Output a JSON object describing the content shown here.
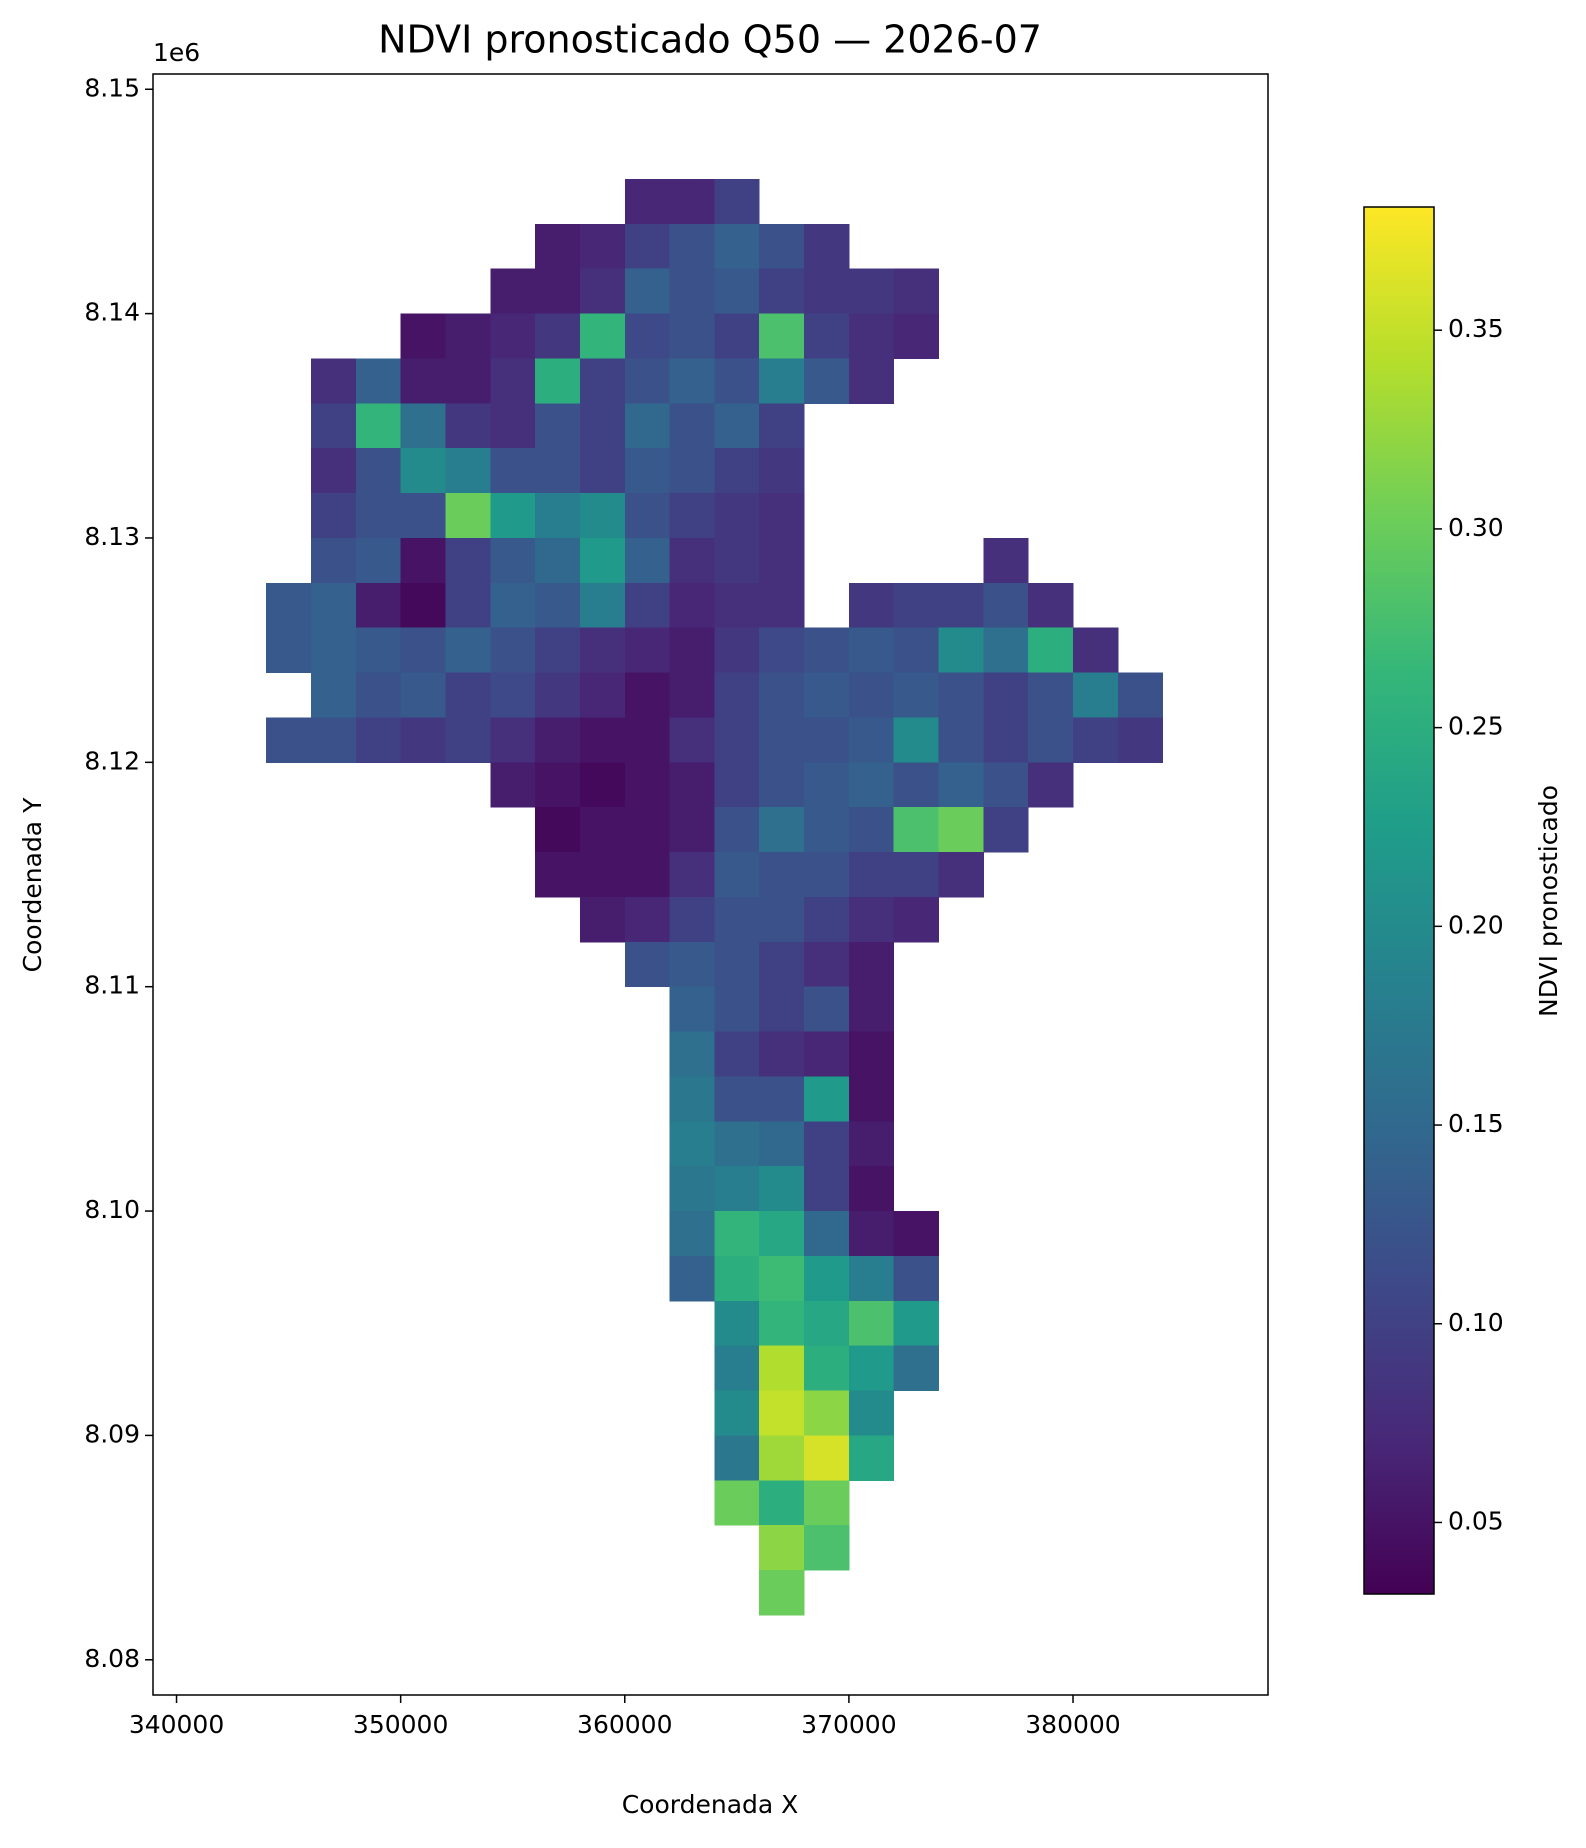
{
  "chart_data": {
    "type": "heatmap",
    "title": "NDVI pronosticado Q50 — 2026-07",
    "xlabel": "Coordenada X",
    "ylabel": "Coordenada Y",
    "y_offset_label": "1e6",
    "xlim": [
      338950,
      388700
    ],
    "ylim": [
      8078430,
      8150680
    ],
    "xticks": [
      340000,
      350000,
      360000,
      370000,
      380000
    ],
    "yticks": [
      {
        "value": 8080000,
        "label": "8.08"
      },
      {
        "value": 8090000,
        "label": "8.09"
      },
      {
        "value": 8100000,
        "label": "8.10"
      },
      {
        "value": 8110000,
        "label": "8.11"
      },
      {
        "value": 8120000,
        "label": "8.12"
      },
      {
        "value": 8130000,
        "label": "8.13"
      },
      {
        "value": 8140000,
        "label": "8.14"
      },
      {
        "value": 8150000,
        "label": "8.15"
      }
    ],
    "xbins": [
      344000,
      346000,
      348000,
      350000,
      352000,
      354000,
      356000,
      358000,
      360000,
      362000,
      364000,
      366000,
      368000,
      370000,
      372000,
      374000,
      376000,
      378000,
      380000,
      382000,
      384000
    ],
    "ybins": [
      8146000,
      8144000,
      8142000,
      8140000,
      8138000,
      8136000,
      8134000,
      8132000,
      8130000,
      8128000,
      8126000,
      8124000,
      8122000,
      8120000,
      8118000,
      8116000,
      8114000,
      8112000,
      8110000,
      8108000,
      8106000,
      8104000,
      8102000,
      8100000,
      8098000,
      8096000,
      8094000,
      8092000,
      8090000,
      8088000,
      8086000,
      8084000,
      8082000
    ],
    "z": [
      [
        null,
        null,
        null,
        null,
        null,
        null,
        null,
        null,
        0.07,
        0.07,
        0.1,
        null,
        null,
        null,
        null,
        null,
        null,
        null,
        null,
        null
      ],
      [
        null,
        null,
        null,
        null,
        null,
        null,
        0.06,
        0.07,
        0.1,
        0.12,
        0.14,
        0.12,
        0.09,
        null,
        null,
        null,
        null,
        null,
        null,
        null
      ],
      [
        null,
        null,
        null,
        null,
        null,
        0.06,
        0.06,
        0.08,
        0.14,
        0.12,
        0.13,
        0.1,
        0.09,
        0.09,
        0.08,
        null,
        null,
        null,
        null,
        null
      ],
      [
        null,
        null,
        null,
        0.05,
        0.06,
        0.07,
        0.09,
        0.26,
        0.11,
        0.12,
        0.1,
        0.28,
        0.1,
        0.08,
        0.07,
        null,
        null,
        null,
        null,
        null
      ],
      [
        null,
        0.08,
        0.14,
        0.06,
        0.06,
        0.08,
        0.25,
        0.1,
        0.12,
        0.14,
        0.12,
        0.18,
        0.13,
        0.08,
        null,
        null,
        null,
        null,
        null,
        null
      ],
      [
        null,
        0.1,
        0.26,
        0.16,
        0.09,
        0.08,
        0.12,
        0.1,
        0.15,
        0.12,
        0.14,
        0.1,
        null,
        null,
        null,
        null,
        null,
        null,
        null,
        null
      ],
      [
        null,
        0.08,
        0.12,
        0.2,
        0.18,
        0.12,
        0.12,
        0.1,
        0.13,
        0.12,
        0.1,
        0.09,
        null,
        null,
        null,
        null,
        null,
        null,
        null,
        null
      ],
      [
        null,
        0.1,
        0.12,
        0.12,
        0.3,
        0.22,
        0.18,
        0.2,
        0.12,
        0.1,
        0.09,
        0.08,
        null,
        null,
        null,
        null,
        null,
        null,
        null,
        null
      ],
      [
        null,
        0.12,
        0.13,
        0.05,
        0.1,
        0.13,
        0.15,
        0.22,
        0.14,
        0.08,
        0.09,
        0.08,
        null,
        null,
        null,
        null,
        0.08,
        null,
        null,
        null
      ],
      [
        0.13,
        0.14,
        0.06,
        0.04,
        0.1,
        0.14,
        0.13,
        0.18,
        0.1,
        0.07,
        0.08,
        0.08,
        null,
        0.09,
        0.1,
        0.1,
        0.12,
        0.08,
        null,
        null
      ],
      [
        0.13,
        0.14,
        0.13,
        0.12,
        0.14,
        0.12,
        0.1,
        0.08,
        0.07,
        0.06,
        0.09,
        0.11,
        0.12,
        0.13,
        0.12,
        0.2,
        0.16,
        0.25,
        0.08,
        null
      ],
      [
        null,
        0.14,
        0.12,
        0.13,
        0.1,
        0.11,
        0.09,
        0.07,
        0.05,
        0.06,
        0.1,
        0.12,
        0.13,
        0.12,
        0.13,
        0.12,
        0.1,
        0.12,
        0.18,
        0.12
      ],
      [
        0.12,
        0.12,
        0.1,
        0.09,
        0.1,
        0.08,
        0.06,
        0.05,
        0.05,
        0.08,
        0.1,
        0.12,
        0.12,
        0.13,
        0.2,
        0.12,
        0.1,
        0.12,
        0.1,
        0.09
      ],
      [
        null,
        null,
        null,
        null,
        null,
        0.06,
        0.05,
        0.04,
        0.05,
        0.06,
        0.1,
        0.12,
        0.13,
        0.14,
        0.12,
        0.14,
        0.12,
        0.08,
        null,
        null
      ],
      [
        null,
        null,
        null,
        null,
        null,
        null,
        0.04,
        0.05,
        0.05,
        0.06,
        0.12,
        0.16,
        0.13,
        0.12,
        0.28,
        0.3,
        0.1,
        null,
        null,
        null
      ],
      [
        null,
        null,
        null,
        null,
        null,
        null,
        0.05,
        0.05,
        0.05,
        0.08,
        0.13,
        0.12,
        0.12,
        0.1,
        0.1,
        0.08,
        null,
        null,
        null,
        null
      ],
      [
        null,
        null,
        null,
        null,
        null,
        null,
        null,
        0.06,
        0.07,
        0.1,
        0.12,
        0.12,
        0.1,
        0.08,
        0.07,
        null,
        null,
        null,
        null,
        null
      ],
      [
        null,
        null,
        null,
        null,
        null,
        null,
        null,
        null,
        0.12,
        0.13,
        0.12,
        0.1,
        0.08,
        0.06,
        null,
        null,
        null,
        null,
        null,
        null
      ],
      [
        null,
        null,
        null,
        null,
        null,
        null,
        null,
        null,
        null,
        0.14,
        0.12,
        0.1,
        0.12,
        0.06,
        null,
        null,
        null,
        null,
        null,
        null
      ],
      [
        null,
        null,
        null,
        null,
        null,
        null,
        null,
        null,
        null,
        0.16,
        0.1,
        0.08,
        0.07,
        0.05,
        null,
        null,
        null,
        null,
        null,
        null
      ],
      [
        null,
        null,
        null,
        null,
        null,
        null,
        null,
        null,
        null,
        0.17,
        0.12,
        0.12,
        0.22,
        0.05,
        null,
        null,
        null,
        null,
        null,
        null
      ],
      [
        null,
        null,
        null,
        null,
        null,
        null,
        null,
        null,
        null,
        0.18,
        0.16,
        0.15,
        0.1,
        0.06,
        null,
        null,
        null,
        null,
        null,
        null
      ],
      [
        null,
        null,
        null,
        null,
        null,
        null,
        null,
        null,
        null,
        0.17,
        0.18,
        0.2,
        0.1,
        0.05,
        null,
        null,
        null,
        null,
        null,
        null
      ],
      [
        null,
        null,
        null,
        null,
        null,
        null,
        null,
        null,
        null,
        0.16,
        0.26,
        0.24,
        0.15,
        0.06,
        0.05,
        null,
        null,
        null,
        null,
        null
      ],
      [
        null,
        null,
        null,
        null,
        null,
        null,
        null,
        null,
        null,
        0.14,
        0.25,
        0.27,
        0.22,
        0.18,
        0.12,
        null,
        null,
        null,
        null,
        null
      ],
      [
        null,
        null,
        null,
        null,
        null,
        null,
        null,
        null,
        null,
        null,
        0.2,
        0.26,
        0.24,
        0.28,
        0.22,
        null,
        null,
        null,
        null,
        null
      ],
      [
        null,
        null,
        null,
        null,
        null,
        null,
        null,
        null,
        null,
        null,
        0.18,
        0.34,
        0.25,
        0.22,
        0.16,
        null,
        null,
        null,
        null,
        null
      ],
      [
        null,
        null,
        null,
        null,
        null,
        null,
        null,
        null,
        null,
        null,
        0.2,
        0.35,
        0.32,
        0.2,
        null,
        null,
        null,
        null,
        null,
        null
      ],
      [
        null,
        null,
        null,
        null,
        null,
        null,
        null,
        null,
        null,
        null,
        0.17,
        0.33,
        0.36,
        0.24,
        null,
        null,
        null,
        null,
        null,
        null
      ],
      [
        null,
        null,
        null,
        null,
        null,
        null,
        null,
        null,
        null,
        null,
        0.3,
        0.25,
        0.3,
        null,
        null,
        null,
        null,
        null,
        null,
        null
      ],
      [
        null,
        null,
        null,
        null,
        null,
        null,
        null,
        null,
        null,
        null,
        null,
        0.32,
        0.28,
        null,
        null,
        null,
        null,
        null,
        null,
        null
      ],
      [
        null,
        null,
        null,
        null,
        null,
        null,
        null,
        null,
        null,
        null,
        null,
        0.3,
        null,
        null,
        null,
        null,
        null,
        null,
        null,
        null
      ]
    ],
    "colorbar": {
      "label": "NDVI pronosticado",
      "cmap": "viridis",
      "lim": [
        0.032,
        0.381
      ],
      "ticks": [
        0.05,
        {
          "value": 0.1,
          "label": "0.10"
        },
        0.15,
        {
          "value": 0.2,
          "label": "0.20"
        },
        0.25,
        {
          "value": 0.3,
          "label": "0.30"
        },
        0.35
      ]
    }
  }
}
